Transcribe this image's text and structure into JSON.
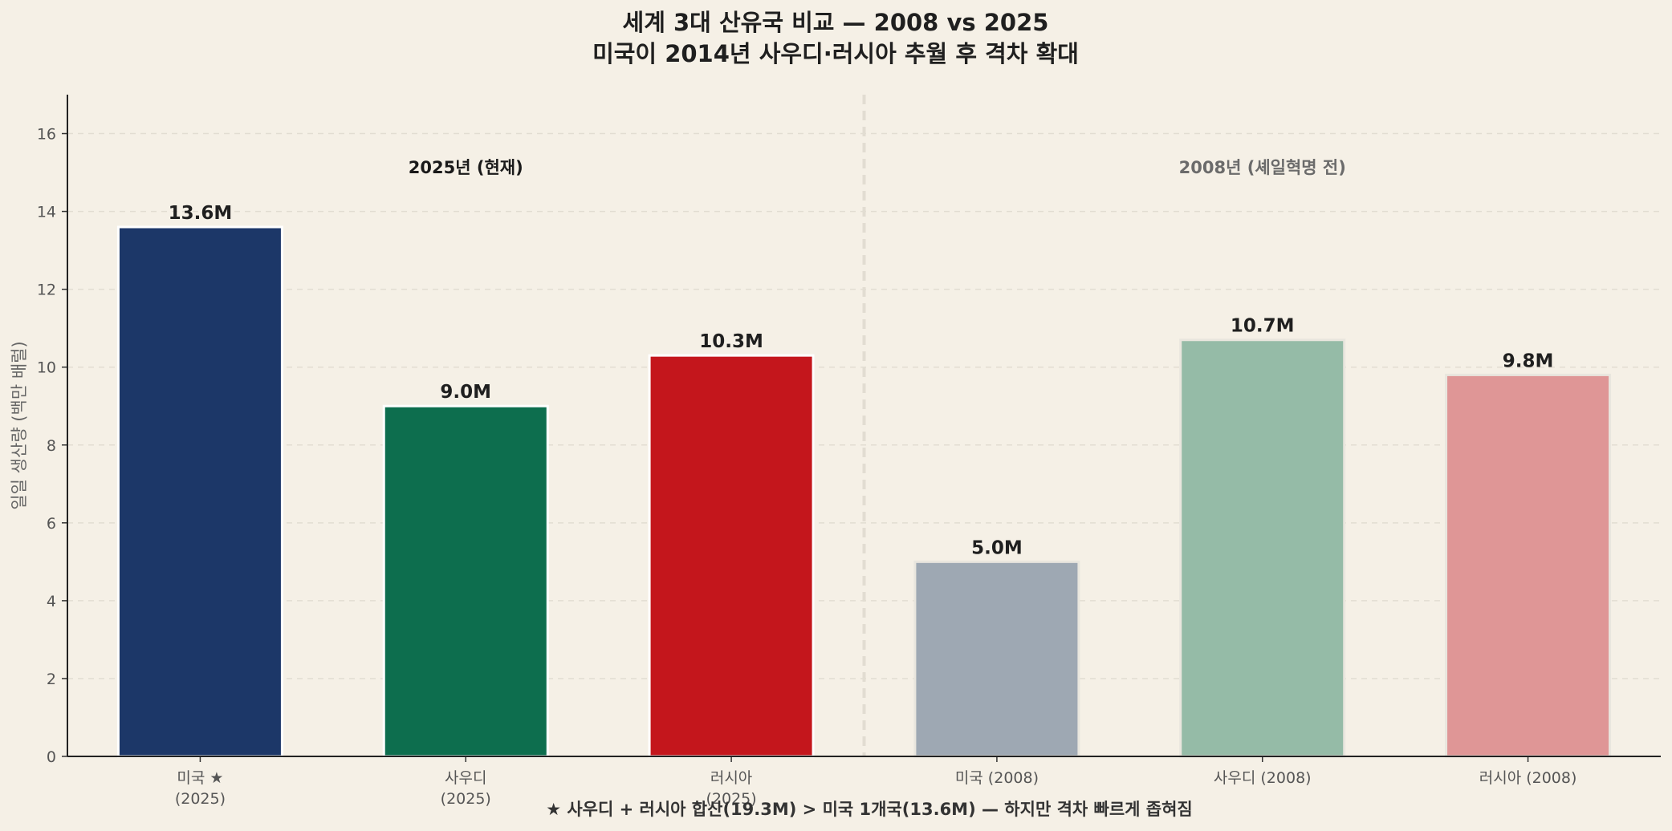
{
  "chart_data": {
    "type": "bar",
    "title_lines": [
      "세계 3대 산유국 비교 — 2008 vs 2025",
      "미국이 2014년 사우디·러시아 추월 후 격차 확대"
    ],
    "ylabel": "일일 생산량 (백만 배럴)",
    "xlabel": "",
    "ylim": [
      0,
      17
    ],
    "yticks": [
      0,
      2,
      4,
      6,
      8,
      10,
      12,
      14,
      16
    ],
    "grid": true,
    "sections": [
      {
        "label": "2025년 (현재)",
        "color": "#1a1a1a"
      },
      {
        "label": "2008년 (셰일혁명 전)",
        "color": "#6b6b6b"
      }
    ],
    "categories": [
      [
        "미국 ★",
        "(2025)"
      ],
      [
        "사우디",
        "(2025)"
      ],
      [
        "러시아",
        "(2025)"
      ],
      [
        "미국 (2008)"
      ],
      [
        "사우디 (2008)"
      ],
      [
        "러시아 (2008)"
      ]
    ],
    "values": [
      13.6,
      9.0,
      10.3,
      5.0,
      10.7,
      9.8
    ],
    "value_labels": [
      "13.6M",
      "9.0M",
      "10.3M",
      "5.0M",
      "10.7M",
      "9.8M"
    ],
    "colors": [
      "#1c3768",
      "#0d6e4e",
      "#c4161c",
      "#9ea8b3",
      "#95bba7",
      "#df9696"
    ],
    "footnote": "★ 사우디 + 러시아 합산(19.3M) > 미국 1개국(13.6M) — 하지만 격차 빠르게 좁혀짐"
  }
}
